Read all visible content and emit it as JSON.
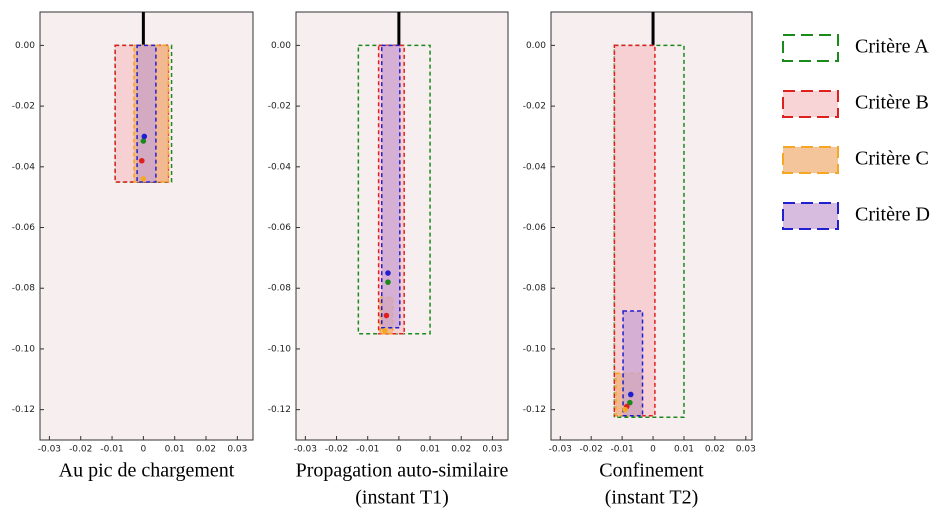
{
  "chart_data": [
    {
      "type": "box",
      "xlabel": [
        "Au pic de chargement"
      ],
      "xlim": [
        -0.033,
        0.035
      ],
      "ylim": [
        -0.13,
        0.011
      ],
      "xticks": [
        -0.03,
        -0.02,
        -0.01,
        0.0,
        0.01,
        0.02,
        0.03
      ],
      "yticks": [
        {
          "value": 0,
          "label": "0.00"
        },
        -0.02,
        -0.04,
        -0.06,
        -0.08,
        {
          "value": -0.1,
          "label": "-0.10"
        },
        -0.12
      ],
      "legend": "right",
      "series": [
        {
          "name": "Critère A",
          "color": "#1a8a1a",
          "fill": "none",
          "box": [
            -0.009,
            0.009,
            -0.045,
            0
          ],
          "point": [
            0.0,
            -0.0315
          ]
        },
        {
          "name": "Critère B",
          "color": "#e0201e",
          "fill": "#f7c6c9",
          "box": [
            -0.009,
            0.008,
            -0.045,
            0
          ],
          "point": [
            -0.0005,
            -0.038
          ]
        },
        {
          "name": "Critère C",
          "color": "#f5a623",
          "fill": "#f0b27a",
          "box": [
            -0.003,
            0.008,
            -0.045,
            0
          ],
          "point": [
            0.0,
            -0.044
          ]
        },
        {
          "name": "Critère D",
          "color": "#2020d0",
          "fill": "#c9a6d4",
          "box": [
            -0.002,
            0.004,
            -0.045,
            0
          ],
          "point": [
            0.0003,
            -0.03
          ]
        }
      ]
    },
    {
      "type": "box",
      "xlabel": [
        "Propagation auto-similaire",
        "(instant T1)"
      ],
      "xlim": [
        -0.033,
        0.035
      ],
      "ylim": [
        -0.13,
        0.011
      ],
      "xticks": [
        -0.03,
        -0.02,
        -0.01,
        0.0,
        0.01,
        0.02,
        0.03
      ],
      "yticks": [
        {
          "value": 0,
          "label": "0.00"
        },
        -0.02,
        -0.04,
        -0.06,
        -0.08,
        {
          "value": -0.1,
          "label": "-0.10"
        },
        -0.12
      ],
      "series": [
        {
          "name": "Critère A",
          "color": "#1a8a1a",
          "fill": "none",
          "box": [
            -0.013,
            0.01,
            -0.095,
            0
          ],
          "point": [
            -0.0035,
            -0.078
          ]
        },
        {
          "name": "Critère B",
          "color": "#e0201e",
          "fill": "#f7c6c9",
          "box": [
            -0.0065,
            0.0017,
            -0.095,
            0
          ],
          "point": [
            -0.004,
            -0.089
          ]
        },
        {
          "name": "Critère C",
          "color": "#f5a623",
          "fill": "#f0b27a",
          "box": [
            -0.006,
            -0.002,
            -0.095,
            -0.083
          ],
          "point": [
            -0.0045,
            -0.094
          ]
        },
        {
          "name": "Critère D",
          "color": "#2020d0",
          "fill": "#c9a6d4",
          "box": [
            -0.0055,
            0.0003,
            -0.093,
            0
          ],
          "point": [
            -0.0035,
            -0.075
          ]
        }
      ]
    },
    {
      "type": "box",
      "xlabel": [
        "Confinement",
        "(instant T2)"
      ],
      "xlim": [
        -0.033,
        0.032
      ],
      "ylim": [
        -0.13,
        0.011
      ],
      "xticks": [
        -0.03,
        -0.02,
        -0.01,
        0.0,
        0.01,
        0.02,
        0.03
      ],
      "yticks": [
        {
          "value": 0,
          "label": "0.00"
        },
        -0.02,
        -0.04,
        -0.06,
        -0.08,
        {
          "value": -0.1,
          "label": "-0.10"
        },
        -0.12
      ],
      "series": [
        {
          "name": "Critère A",
          "color": "#1a8a1a",
          "fill": "none",
          "box": [
            -0.0125,
            0.01,
            -0.1225,
            0
          ],
          "point": [
            -0.0075,
            -0.1177
          ]
        },
        {
          "name": "Critère B",
          "color": "#e0201e",
          "fill": "#f7c6c9",
          "box": [
            -0.0125,
            0.0006,
            -0.122,
            0
          ],
          "point": [
            -0.0085,
            -0.119
          ]
        },
        {
          "name": "Critère C",
          "color": "#f5a623",
          "fill": "#f0b27a",
          "box": [
            -0.012,
            -0.004,
            -0.122,
            -0.108
          ],
          "point": [
            -0.009,
            -0.12
          ]
        },
        {
          "name": "Critère D",
          "color": "#2020d0",
          "fill": "#c9a6d4",
          "box": [
            -0.0097,
            -0.0034,
            -0.122,
            -0.0875
          ],
          "point": [
            -0.0072,
            -0.115
          ]
        }
      ]
    }
  ]
}
